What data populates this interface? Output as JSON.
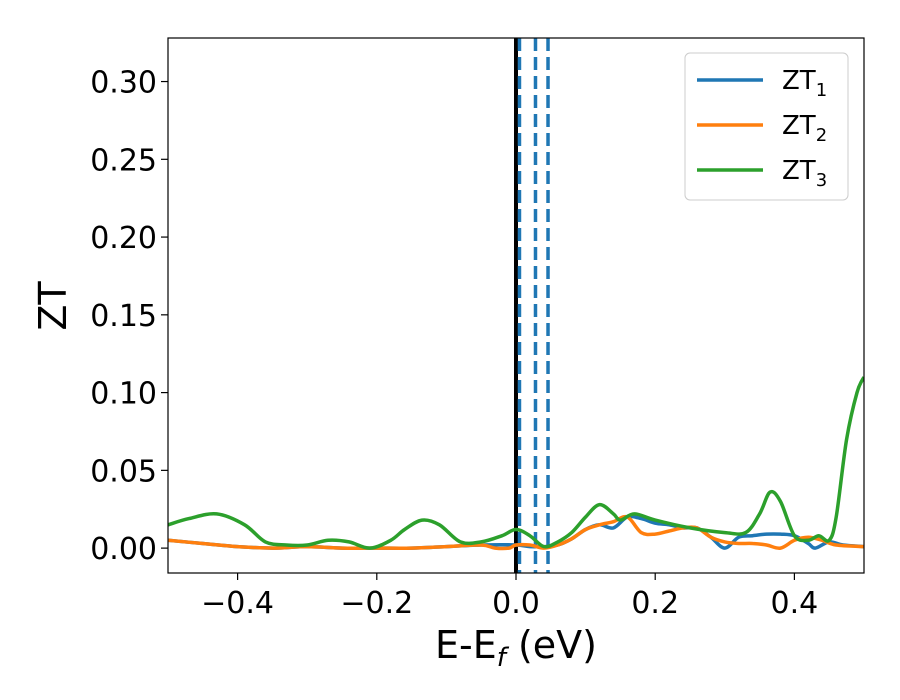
{
  "chart_data": {
    "type": "line",
    "title": "",
    "xlabel": {
      "main": "E-E",
      "sub": "f",
      "unit": " (eV)"
    },
    "ylabel": "ZT",
    "xlim": [
      -0.5,
      0.5
    ],
    "ylim": [
      -0.016,
      0.328
    ],
    "xticks": [
      -0.4,
      -0.2,
      0.0,
      0.2,
      0.4
    ],
    "xtick_labels": [
      "−0.4",
      "−0.2",
      "0.0",
      "0.2",
      "0.4"
    ],
    "yticks": [
      0.0,
      0.05,
      0.1,
      0.15,
      0.2,
      0.25,
      0.3
    ],
    "ytick_labels": [
      "0.00",
      "0.05",
      "0.10",
      "0.15",
      "0.20",
      "0.25",
      "0.30"
    ],
    "grid": false,
    "legend_position": "top-right",
    "vertical_lines": [
      {
        "x": 0.0,
        "color": "#000000",
        "style": "solid"
      },
      {
        "x": 0.005,
        "color": "#1f77b4",
        "style": "dashed"
      },
      {
        "x": 0.028,
        "color": "#1f77b4",
        "style": "dashed"
      },
      {
        "x": 0.046,
        "color": "#1f77b4",
        "style": "dashed"
      }
    ],
    "series": [
      {
        "name": "ZT",
        "name_sub": "1",
        "color": "#1f77b4",
        "x": [
          -0.5,
          -0.45,
          -0.4,
          -0.35,
          -0.3,
          -0.25,
          -0.2,
          -0.15,
          -0.1,
          -0.05,
          0.0,
          0.02,
          0.04,
          0.06,
          0.08,
          0.1,
          0.12,
          0.14,
          0.16,
          0.18,
          0.2,
          0.22,
          0.24,
          0.26,
          0.28,
          0.3,
          0.32,
          0.34,
          0.36,
          0.38,
          0.4,
          0.42,
          0.43,
          0.45,
          0.47,
          0.5
        ],
        "y": [
          0.005,
          0.003,
          0.001,
          0.0,
          0.001,
          0.0,
          0.0,
          0.0,
          0.001,
          0.002,
          0.002,
          0.001,
          0.001,
          0.002,
          0.006,
          0.012,
          0.015,
          0.013,
          0.02,
          0.019,
          0.016,
          0.015,
          0.013,
          0.013,
          0.007,
          0.0,
          0.007,
          0.008,
          0.009,
          0.009,
          0.008,
          0.003,
          0.0,
          0.004,
          0.002,
          0.001
        ]
      },
      {
        "name": "ZT",
        "name_sub": "2",
        "color": "#ff7f0e",
        "x": [
          -0.5,
          -0.45,
          -0.4,
          -0.35,
          -0.3,
          -0.25,
          -0.2,
          -0.15,
          -0.1,
          -0.05,
          -0.03,
          -0.01,
          0.0,
          0.02,
          0.04,
          0.06,
          0.08,
          0.1,
          0.12,
          0.14,
          0.16,
          0.18,
          0.2,
          0.22,
          0.24,
          0.26,
          0.28,
          0.3,
          0.32,
          0.34,
          0.36,
          0.38,
          0.4,
          0.42,
          0.44,
          0.46,
          0.5
        ],
        "y": [
          0.005,
          0.003,
          0.001,
          0.0,
          0.001,
          0.0,
          0.0,
          0.0,
          0.001,
          0.002,
          0.0,
          0.0,
          0.002,
          0.002,
          0.0,
          0.002,
          0.006,
          0.012,
          0.015,
          0.017,
          0.02,
          0.01,
          0.009,
          0.011,
          0.013,
          0.013,
          0.007,
          0.004,
          0.003,
          0.003,
          0.002,
          0.0,
          0.005,
          0.007,
          0.005,
          0.002,
          0.001
        ]
      },
      {
        "name": "ZT",
        "name_sub": "3",
        "color": "#2ca02c",
        "x": [
          -0.5,
          -0.47,
          -0.43,
          -0.39,
          -0.36,
          -0.33,
          -0.3,
          -0.27,
          -0.24,
          -0.21,
          -0.18,
          -0.16,
          -0.135,
          -0.11,
          -0.08,
          -0.05,
          -0.02,
          0.0,
          0.02,
          0.04,
          0.06,
          0.08,
          0.1,
          0.12,
          0.14,
          0.15,
          0.17,
          0.2,
          0.25,
          0.3,
          0.33,
          0.35,
          0.365,
          0.38,
          0.4,
          0.42,
          0.435,
          0.45,
          0.46,
          0.475,
          0.49,
          0.5
        ],
        "y": [
          0.015,
          0.019,
          0.022,
          0.015,
          0.004,
          0.002,
          0.002,
          0.005,
          0.004,
          0.0,
          0.005,
          0.012,
          0.018,
          0.015,
          0.004,
          0.004,
          0.008,
          0.012,
          0.008,
          0.001,
          0.004,
          0.01,
          0.02,
          0.028,
          0.022,
          0.018,
          0.022,
          0.018,
          0.013,
          0.01,
          0.01,
          0.022,
          0.036,
          0.03,
          0.008,
          0.005,
          0.008,
          0.005,
          0.02,
          0.07,
          0.1,
          0.11
        ]
      }
    ]
  }
}
